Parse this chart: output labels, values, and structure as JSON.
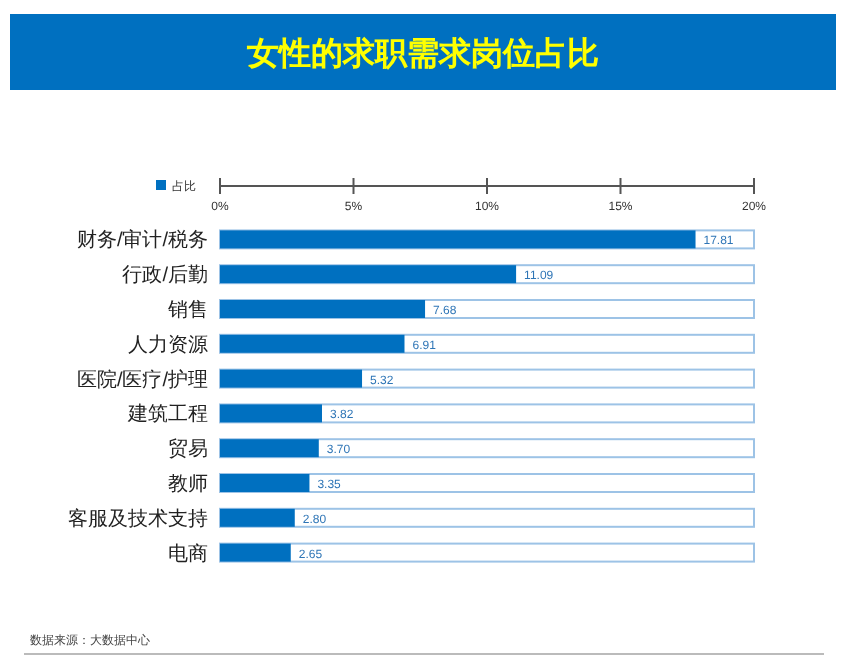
{
  "chart_data": {
    "type": "bar",
    "orientation": "horizontal",
    "title": "女性的求职需求岗位占比",
    "categories": [
      "财务/审计/税务",
      "行政/后勤",
      "销售",
      "人力资源",
      "医院/医疗/护理",
      "建筑工程",
      "贸易",
      "教师",
      "客服及技术支持",
      "电商"
    ],
    "series": [
      {
        "name": "占比",
        "color": "#0070c0",
        "values": [
          17.81,
          11.09,
          7.68,
          6.91,
          5.32,
          3.82,
          3.7,
          3.35,
          2.8,
          2.65
        ],
        "value_labels": [
          "17.81",
          "11.09",
          "7.68",
          "6.91",
          "5.32",
          "3.82",
          "3.70",
          "3.35",
          "2.80",
          "2.65"
        ]
      }
    ],
    "xlim": [
      0,
      20
    ],
    "xticks": [
      {
        "value": 0,
        "label": "0%"
      },
      {
        "value": 5,
        "label": "5%"
      },
      {
        "value": 10,
        "label": "10%"
      },
      {
        "value": 15,
        "label": "15%"
      },
      {
        "value": 20,
        "label": "20%"
      }
    ],
    "legend": "top left",
    "grid": false,
    "annotations": [
      "数据来源：大数据中心"
    ]
  }
}
